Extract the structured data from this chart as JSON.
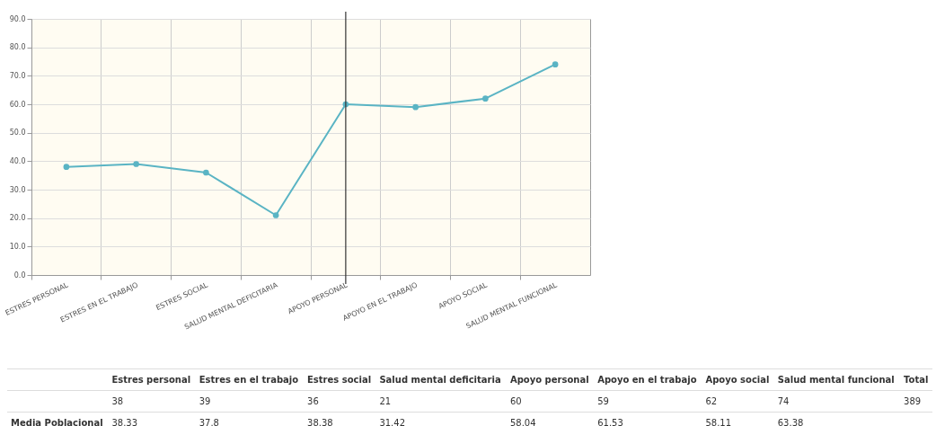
{
  "chart_data": [
    {
      "type": "line",
      "categories": [
        "ESTRES PERSONAL",
        "ESTRES EN EL TRABAJO",
        "ESTRES SOCIAL",
        "SALUD MENTAL DEFICITARIA",
        "APOYO PERSONAL",
        "APOYO EN EL TRABAJO",
        "APOYO SOCIAL",
        "SALUD MENTAL FUNCIONAL"
      ],
      "series": [
        {
          "color": "#5ab4c4",
          "values": [
            38,
            39,
            36,
            21,
            60,
            59,
            62,
            74
          ]
        }
      ],
      "ylim": [
        0,
        90
      ],
      "yticks": [
        {
          "value": 0,
          "label": "0.0"
        },
        {
          "value": 10,
          "label": "10.0"
        },
        {
          "value": 20,
          "label": "20.0"
        },
        {
          "value": 30,
          "label": "30.0"
        },
        {
          "value": 40,
          "label": "40.0"
        },
        {
          "value": 50,
          "label": "50.0"
        },
        {
          "value": 60,
          "label": "60.0"
        },
        {
          "value": 70,
          "label": "70.0"
        },
        {
          "value": 80,
          "label": "80.0"
        },
        {
          "value": 90,
          "label": "90.0"
        }
      ],
      "grid": true,
      "marker": "circle",
      "ref_lines": [
        {
          "axis": "x",
          "value": "APOYO PERSONAL",
          "color": "#333333"
        }
      ]
    },
    {
      "type": "other",
      "data_labels": true,
      "categories": [
        "Estres personal",
        "Estres en el trabajo",
        "Estres social",
        "Salud mental deficitaria",
        "Apoyo personal",
        "Apoyo en el trabajo",
        "Apoyo social",
        "Salud mental funcional",
        "Total"
      ],
      "series": [
        {
          "values": [
            38,
            39,
            36,
            21,
            60,
            59,
            62,
            74,
            389
          ]
        },
        {
          "name": "Media Poblacional",
          "values": [
            38.33,
            37.8,
            38.38,
            31.42,
            58.04,
            61.53,
            58.11,
            63.38,
            null
          ]
        }
      ]
    }
  ]
}
